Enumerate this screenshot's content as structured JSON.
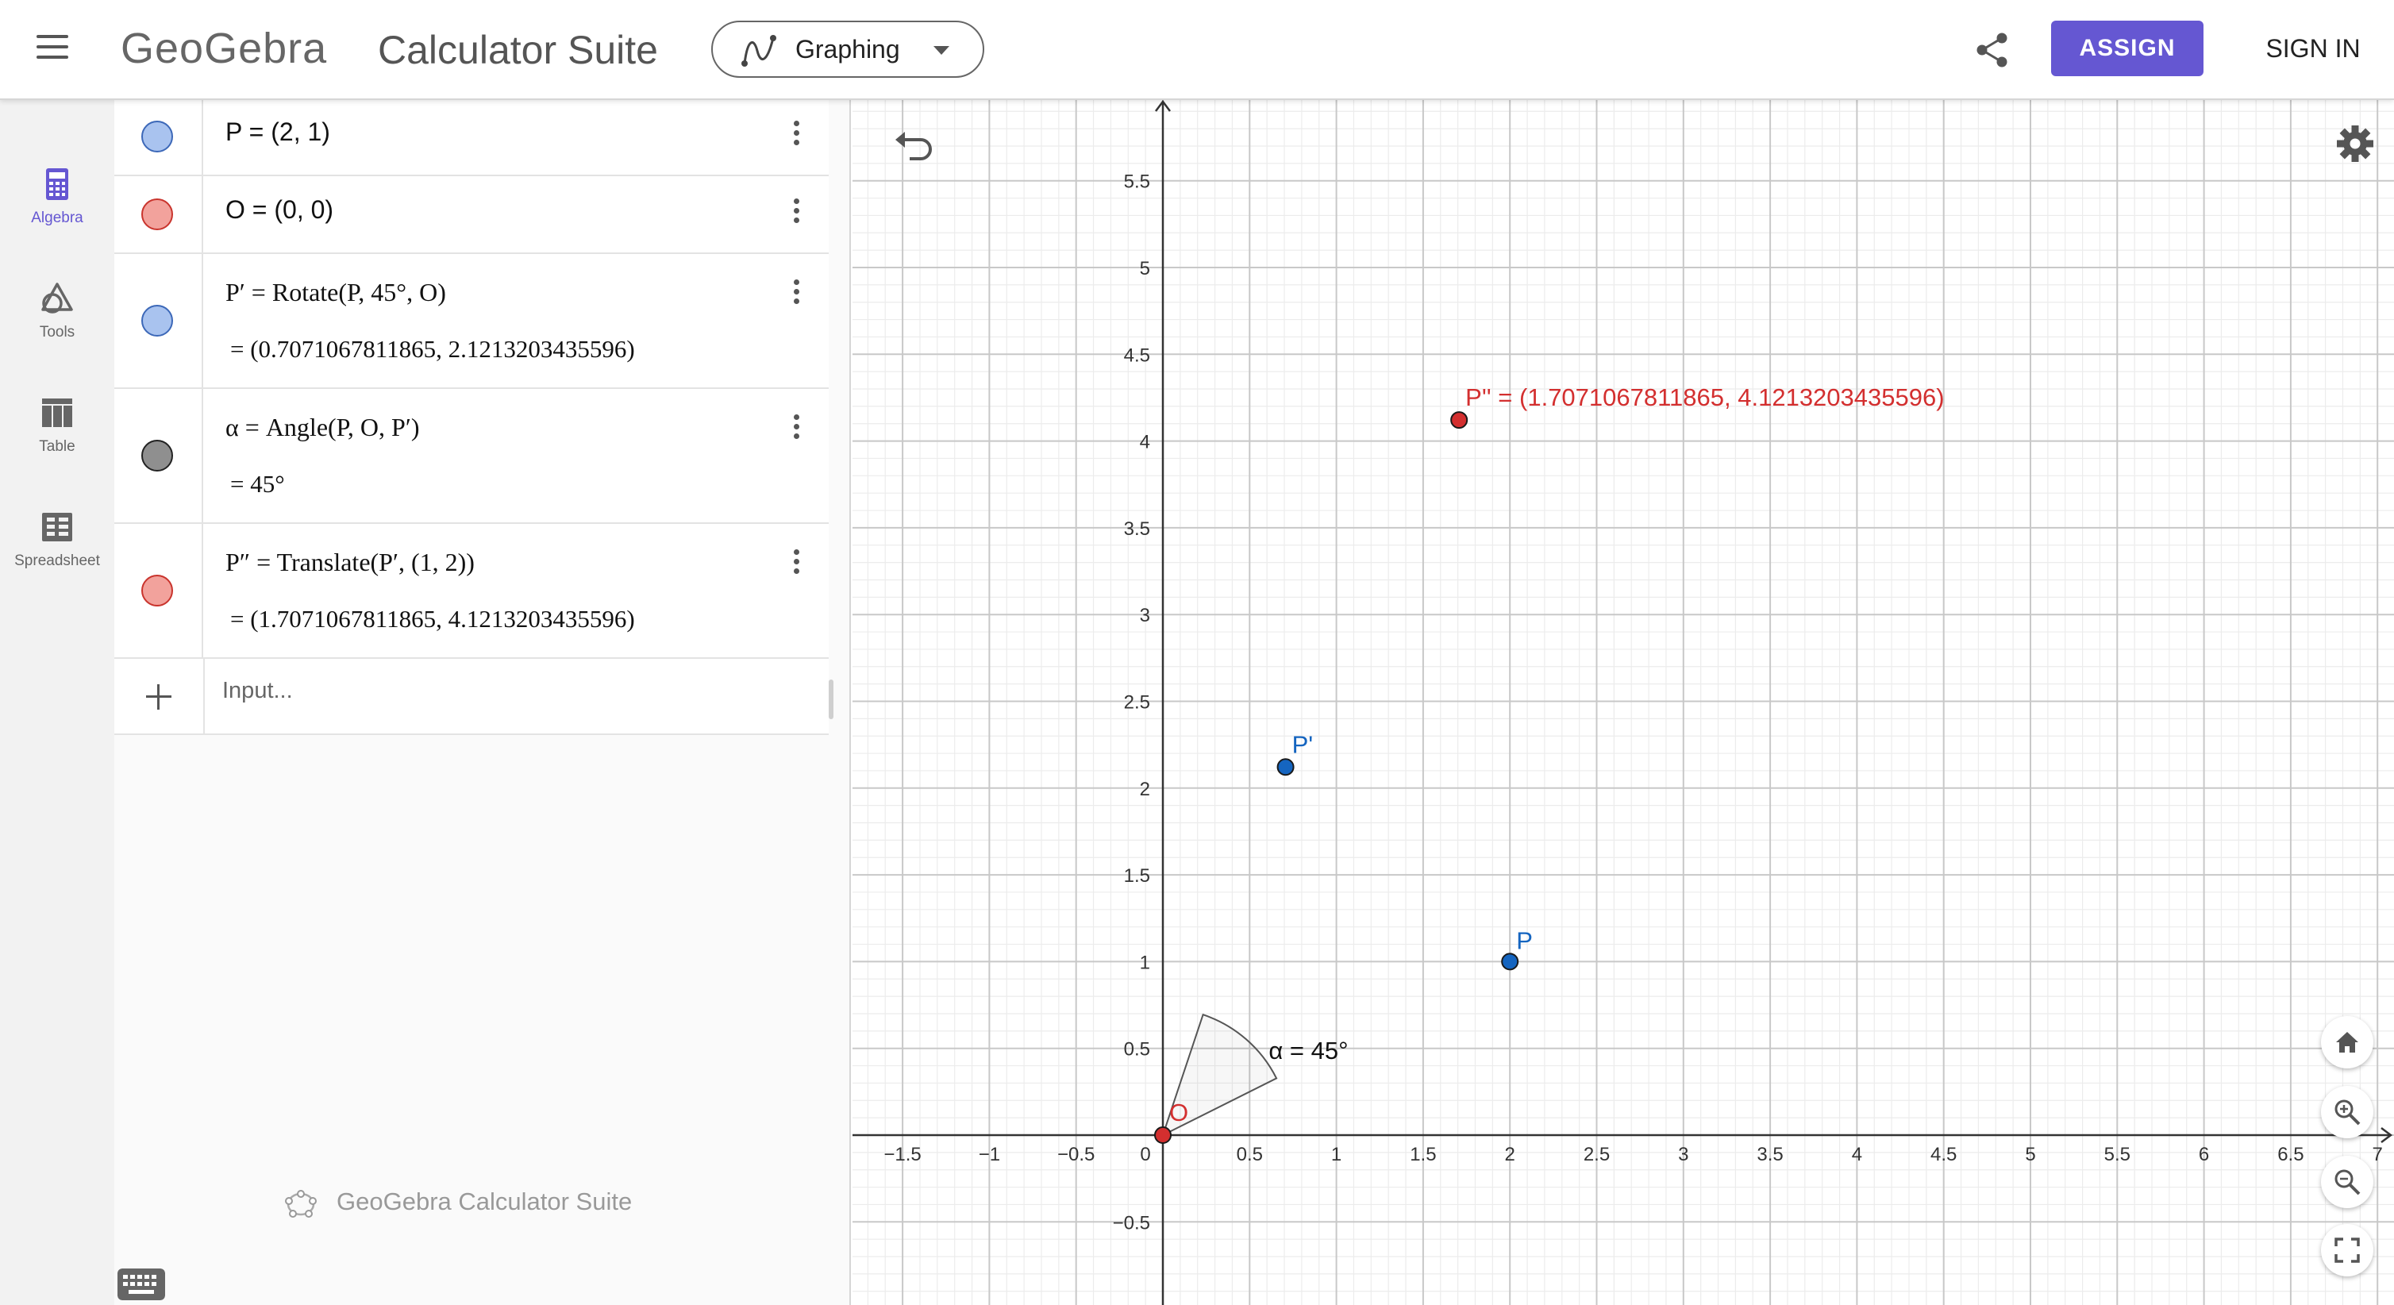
{
  "header": {
    "menu_icon": "hamburger-menu-icon",
    "logo_text": "GeoGebra",
    "suite_title": "Calculator Suite",
    "app_selector": {
      "label": "Graphing",
      "icon": "graphing-icon"
    },
    "share_icon": "share-icon",
    "assign_label": "ASSIGN",
    "signin_label": "SIGN IN",
    "accent_color": "#6557d2"
  },
  "rail": {
    "items": [
      {
        "label": "Algebra",
        "icon": "calculator-icon",
        "active": true
      },
      {
        "label": "Tools",
        "icon": "tools-icon",
        "active": false
      },
      {
        "label": "Table",
        "icon": "table-icon",
        "active": false
      },
      {
        "label": "Spreadsheet",
        "icon": "spreadsheet-icon",
        "active": false
      }
    ]
  },
  "algebra": {
    "rows": [
      {
        "definition": "P = (2, 1)",
        "value": "",
        "color": "#6f9ae0"
      },
      {
        "definition": "O = (0, 0)",
        "value": "",
        "color": "#e8403a"
      },
      {
        "definition": "P′ = Rotate(P, 45°, O)",
        "value": "=  (0.7071067811865, 2.1213203435596)",
        "color": "#6f9ae0"
      },
      {
        "definition": "α = Angle(P, O, P′)",
        "value": "=  45°",
        "color": "#404040"
      },
      {
        "definition": "P″ = Translate(P′, (1,  2))",
        "value": "=  (1.7071067811865, 4.1213203435596)",
        "color": "#e8403a"
      }
    ],
    "input_placeholder": "Input...",
    "watermark": "GeoGebra Calculator Suite",
    "keyboard_icon": "keyboard-icon"
  },
  "graphics": {
    "x_ticks": [
      "−1.5",
      "−1",
      "−0.5",
      "0",
      "0.5",
      "1",
      "1.5",
      "2",
      "2.5",
      "3",
      "3.5",
      "4",
      "4.5",
      "5",
      "5.5",
      "6",
      "6.5",
      "7"
    ],
    "y_ticks": [
      "5.5",
      "5",
      "4.5",
      "4",
      "3.5",
      "3",
      "2.5",
      "2",
      "1.5",
      "1",
      "0.5",
      "−0.5"
    ],
    "points": [
      {
        "name": "P",
        "label": "P",
        "x": 2,
        "y": 1,
        "color": "#1565c0"
      },
      {
        "name": "P-prime",
        "label": "P'",
        "x": 0.7071067811865,
        "y": 2.1213203435596,
        "color": "#1565c0"
      },
      {
        "name": "P-double-prime",
        "label": "P'' = (1.7071067811865, 4.1213203435596)",
        "x": 1.7071067811865,
        "y": 4.1213203435596,
        "color": "#d32f2f"
      },
      {
        "name": "O",
        "label": "O",
        "x": 0,
        "y": 0,
        "color": "#d32f2f"
      }
    ],
    "angle_label": "α = 45°",
    "angle_degrees": 45,
    "undo_icon": "undo-icon",
    "settings_icon": "gear-icon",
    "buttons": [
      {
        "name": "home-view-button",
        "icon": "home-icon"
      },
      {
        "name": "zoom-in-button",
        "icon": "zoom-in-icon"
      },
      {
        "name": "zoom-out-button",
        "icon": "zoom-out-icon"
      },
      {
        "name": "fullscreen-button",
        "icon": "fullscreen-icon"
      }
    ]
  }
}
